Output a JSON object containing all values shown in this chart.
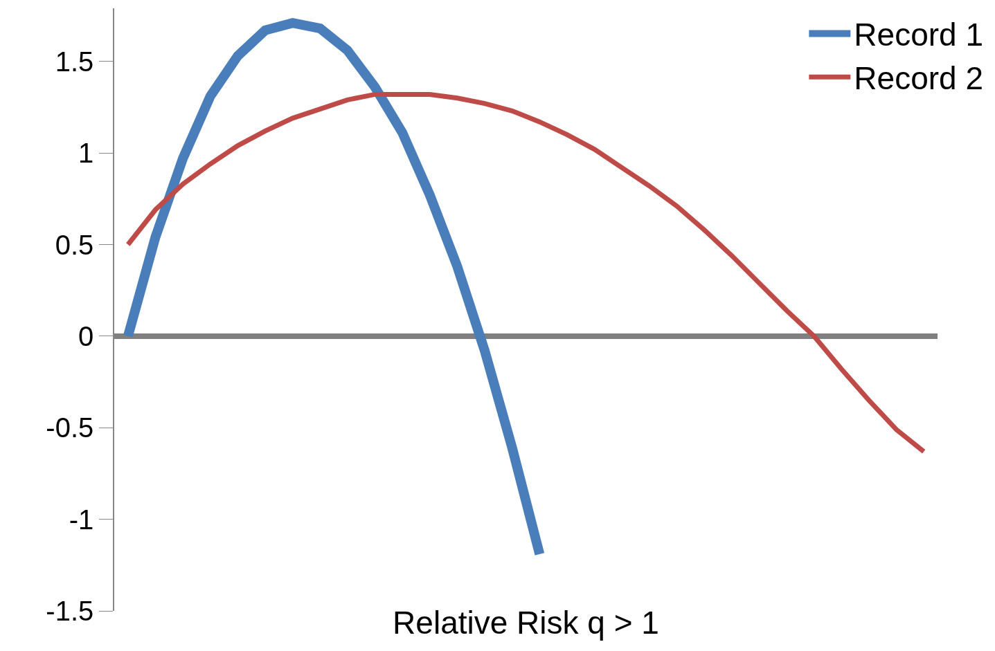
{
  "chart_data": {
    "type": "line",
    "xlabel": "Relative Risk q > 1",
    "categories": [
      null,
      null,
      null,
      null,
      null,
      null,
      null,
      null,
      null,
      null,
      null,
      null,
      null,
      null,
      null,
      null,
      null,
      null,
      null,
      null,
      null,
      null,
      null,
      null,
      null,
      null,
      null,
      null,
      null,
      null
    ],
    "series": [
      {
        "name": "Record 1",
        "color": "#4a7ebb",
        "values": [
          0,
          0.54,
          0.97,
          1.31,
          1.53,
          1.67,
          1.71,
          1.68,
          1.56,
          1.36,
          1.11,
          0.77,
          0.38,
          -0.08,
          -0.61,
          -1.19,
          null,
          null,
          null,
          null,
          null,
          null,
          null,
          null,
          null,
          null,
          null,
          null,
          null,
          null
        ]
      },
      {
        "name": "Record 2",
        "color": "#be4b48",
        "values": [
          0.5,
          0.69,
          0.83,
          0.94,
          1.04,
          1.12,
          1.19,
          1.24,
          1.29,
          1.32,
          1.32,
          1.32,
          1.3,
          1.27,
          1.23,
          1.17,
          1.1,
          1.02,
          0.92,
          0.82,
          0.71,
          0.58,
          0.44,
          0.29,
          0.14,
          0.0,
          -0.18,
          -0.35,
          -0.51,
          -0.63
        ],
        "line_style": "solid"
      }
    ],
    "ylim": [
      -1.5,
      1.79
    ],
    "yticks": [
      -1.5,
      -1,
      -0.5,
      0,
      0.5,
      1,
      1.5
    ],
    "ref_lines": [
      {
        "axis": "y",
        "value": 0,
        "color": "#808080"
      }
    ],
    "grid": false,
    "legend": "top right",
    "marker": "none",
    "tick_labels": "y"
  }
}
